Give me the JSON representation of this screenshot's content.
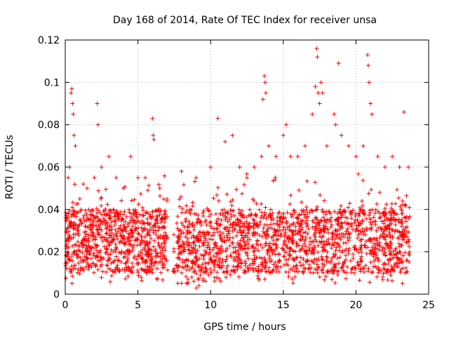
{
  "chart_data": {
    "type": "scatter",
    "title": "Day 168 of 2014, Rate Of TEC Index for receiver unsa",
    "xlabel": "GPS time / hours",
    "ylabel": "ROTI / TECUs",
    "xlim": [
      0,
      25
    ],
    "ylim": [
      0,
      0.12
    ],
    "xticks": [
      0,
      5,
      10,
      15,
      20,
      25
    ],
    "xtick_labels": [
      "0",
      "5",
      "10",
      "15",
      "20",
      "25"
    ],
    "yticks": [
      0,
      0.02,
      0.04,
      0.06,
      0.08,
      0.1,
      0.12
    ],
    "ytick_labels": [
      "0",
      "0.02",
      "0.04",
      "0.06",
      "0.08",
      "0.1",
      "0.12"
    ],
    "grid": true,
    "marker": "plus",
    "color": "#ff0000",
    "series": [
      {
        "name": "ROTI",
        "data_gaps_hours": [
          [
            7.05,
            7.45
          ],
          [
            7.5,
            7.65
          ]
        ],
        "sample_points": [
          [
            0.1,
            0.025
          ],
          [
            0.2,
            0.055
          ],
          [
            0.3,
            0.06
          ],
          [
            0.4,
            0.095
          ],
          [
            0.45,
            0.097
          ],
          [
            0.5,
            0.09
          ],
          [
            0.55,
            0.085
          ],
          [
            0.6,
            0.075
          ],
          [
            0.7,
            0.07
          ],
          [
            1.0,
            0.045
          ],
          [
            1.5,
            0.05
          ],
          [
            2.0,
            0.055
          ],
          [
            2.2,
            0.09
          ],
          [
            2.25,
            0.08
          ],
          [
            2.5,
            0.06
          ],
          [
            3.0,
            0.065
          ],
          [
            3.5,
            0.055
          ],
          [
            4.0,
            0.05
          ],
          [
            4.5,
            0.065
          ],
          [
            5.0,
            0.055
          ],
          [
            5.5,
            0.055
          ],
          [
            6.0,
            0.083
          ],
          [
            6.05,
            0.075
          ],
          [
            6.1,
            0.073
          ],
          [
            6.5,
            0.05
          ],
          [
            7.0,
            0.045
          ],
          [
            8.0,
            0.058
          ],
          [
            9.0,
            0.055
          ],
          [
            10.0,
            0.06
          ],
          [
            10.5,
            0.083
          ],
          [
            11.0,
            0.072
          ],
          [
            11.5,
            0.075
          ],
          [
            12.0,
            0.06
          ],
          [
            12.5,
            0.055
          ],
          [
            13.0,
            0.06
          ],
          [
            13.5,
            0.065
          ],
          [
            13.7,
            0.103
          ],
          [
            13.75,
            0.1
          ],
          [
            13.8,
            0.095
          ],
          [
            13.6,
            0.092
          ],
          [
            14.0,
            0.07
          ],
          [
            14.5,
            0.065
          ],
          [
            15.0,
            0.075
          ],
          [
            15.2,
            0.08
          ],
          [
            15.5,
            0.065
          ],
          [
            16.0,
            0.065
          ],
          [
            16.5,
            0.07
          ],
          [
            17.0,
            0.085
          ],
          [
            17.2,
            0.098
          ],
          [
            17.3,
            0.116
          ],
          [
            17.35,
            0.112
          ],
          [
            17.4,
            0.095
          ],
          [
            17.5,
            0.09
          ],
          [
            17.6,
            0.1
          ],
          [
            17.7,
            0.095
          ],
          [
            18.0,
            0.07
          ],
          [
            18.5,
            0.085
          ],
          [
            18.6,
            0.08
          ],
          [
            18.8,
            0.109
          ],
          [
            19.0,
            0.075
          ],
          [
            19.5,
            0.07
          ],
          [
            20.0,
            0.065
          ],
          [
            20.5,
            0.07
          ],
          [
            20.8,
            0.113
          ],
          [
            20.85,
            0.108
          ],
          [
            20.9,
            0.1
          ],
          [
            21.0,
            0.09
          ],
          [
            21.1,
            0.085
          ],
          [
            21.5,
            0.065
          ],
          [
            22.0,
            0.06
          ],
          [
            22.5,
            0.065
          ],
          [
            23.0,
            0.06
          ],
          [
            23.3,
            0.086
          ],
          [
            23.6,
            0.06
          ]
        ],
        "envelope_description_values": {
          "typical_lower": 0.01,
          "typical_upper": 0.04,
          "min": 0.005
        }
      }
    ]
  }
}
